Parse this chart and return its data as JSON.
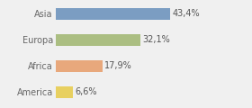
{
  "categories": [
    "Asia",
    "Europa",
    "Africa",
    "America"
  ],
  "values": [
    43.4,
    32.1,
    17.9,
    6.6
  ],
  "labels": [
    "43,4%",
    "32,1%",
    "17,9%",
    "6,6%"
  ],
  "bar_colors": [
    "#7b9dc2",
    "#abbe82",
    "#e8a87c",
    "#e8d060"
  ],
  "background_color": "#f0f0f0",
  "xlim": [
    0,
    60
  ],
  "bar_height": 0.45,
  "label_fontsize": 7,
  "tick_fontsize": 7,
  "label_color": "#555555",
  "tick_color": "#666666"
}
